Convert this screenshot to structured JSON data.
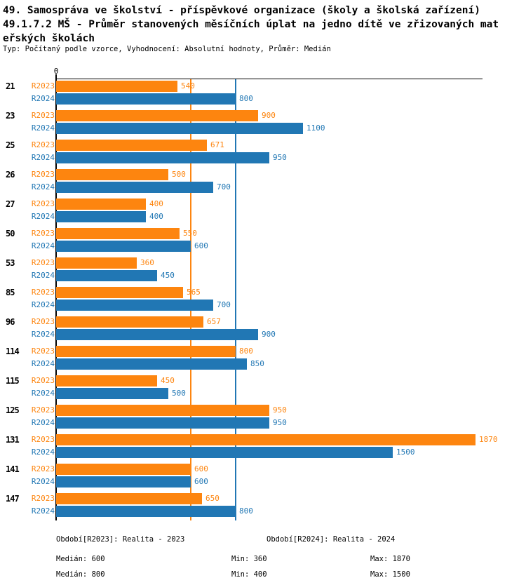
{
  "title": {
    "line1": "49. Samospráva ve školství - příspěvkové organizace (školy a školská zařízení)",
    "line2": "49.1.7.2 MŠ - Průměr stanovených měsíčních úplat na jedno dítě ve zřizovaných mat",
    "line3": "eřských školách",
    "subtitle": "Typ: Počítaný podle vzorce, Vyhodnocení: Absolutní hodnoty, Průměr: Medián"
  },
  "colors": {
    "r2023": "#FD850F",
    "r2024": "#2177B4",
    "axis": "#000000",
    "background": "#FFFFFF"
  },
  "chart_data": {
    "type": "bar",
    "orientation": "horizontal",
    "title": "49.1.7.2 MŠ - Průměr stanovených měsíčních úplat na jedno dítě ve zřizovaných mateřských školách",
    "categories": [
      "21",
      "23",
      "25",
      "26",
      "27",
      "50",
      "53",
      "85",
      "96",
      "114",
      "115",
      "125",
      "131",
      "141",
      "147"
    ],
    "series": [
      {
        "name": "R2023",
        "legend_label": "Období[R2023]: Realita - 2023",
        "color": "#FD850F",
        "values": [
          540,
          900,
          671,
          500,
          400,
          550,
          360,
          565,
          657,
          800,
          450,
          950,
          1870,
          600,
          650
        ],
        "median": 600,
        "min": 360,
        "max": 1870
      },
      {
        "name": "R2024",
        "legend_label": "Období[R2024]: Realita - 2024",
        "color": "#2177B4",
        "values": [
          800,
          1100,
          950,
          700,
          400,
          600,
          450,
          700,
          900,
          850,
          500,
          950,
          1500,
          600,
          800
        ],
        "median": 800,
        "min": 400,
        "max": 1500
      }
    ],
    "axis": {
      "zero_label": "0",
      "xlim": [
        0,
        1890
      ]
    },
    "reference_lines": [
      {
        "value": 600,
        "color": "#FD850F",
        "series": "R2023"
      },
      {
        "value": 800,
        "color": "#2177B4",
        "series": "R2024"
      }
    ],
    "legend_position": "bottom",
    "grid": false
  },
  "legend": {
    "r2023": "Období[R2023]: Realita - 2023",
    "r2024": "Období[R2024]: Realita - 2024"
  },
  "stats": {
    "r2023": {
      "median": "Medián: 600",
      "min": "Min: 360",
      "max": "Max: 1870"
    },
    "r2024": {
      "median": "Medián: 800",
      "min": "Min: 400",
      "max": "Max: 1500"
    }
  }
}
